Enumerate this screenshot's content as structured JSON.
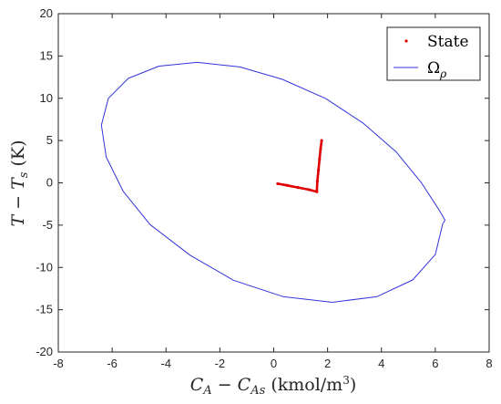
{
  "chart_data": {
    "type": "line",
    "xlabel": "C_A − C_As (kmol/m³)",
    "ylabel": "T − T_s (K)",
    "xlim": [
      -8,
      8
    ],
    "ylim": [
      -20,
      20
    ],
    "xticks": [
      -8,
      -6,
      -4,
      -2,
      0,
      2,
      4,
      6,
      8
    ],
    "yticks": [
      -20,
      -15,
      -10,
      -5,
      0,
      5,
      10,
      15,
      20
    ],
    "grid": false,
    "legend_position": "top-right",
    "series": [
      {
        "name": "State",
        "kind": "trajectory",
        "color": "#e00000",
        "x": [
          0.15,
          0.5,
          0.9,
          1.3,
          1.6,
          1.62,
          1.66,
          1.7,
          1.74,
          1.78
        ],
        "y": [
          -0.1,
          -0.3,
          -0.55,
          -0.8,
          -1.05,
          0.2,
          1.5,
          2.8,
          4.0,
          5.0
        ]
      },
      {
        "name": "Ω_ρ",
        "kind": "ellipse",
        "color": "#3333dd",
        "x": [
          6.28,
          6.0,
          5.16,
          3.84,
          2.18,
          0.34,
          -1.5,
          -3.11,
          -4.59,
          -5.6,
          -6.22,
          -6.4,
          -6.14,
          -5.4,
          -4.26,
          -2.84,
          -1.26,
          0.32,
          1.93,
          3.33,
          4.56,
          5.5,
          6.1,
          6.36,
          6.3
        ],
        "y": [
          -4.76,
          -8.47,
          -11.48,
          -13.44,
          -14.12,
          -13.45,
          -11.52,
          -8.55,
          -4.94,
          -0.96,
          3.06,
          6.83,
          10.0,
          12.36,
          13.8,
          14.24,
          13.7,
          12.24,
          9.96,
          7.04,
          3.62,
          -0.07,
          -3.0,
          -4.4,
          -4.76
        ]
      }
    ]
  }
}
